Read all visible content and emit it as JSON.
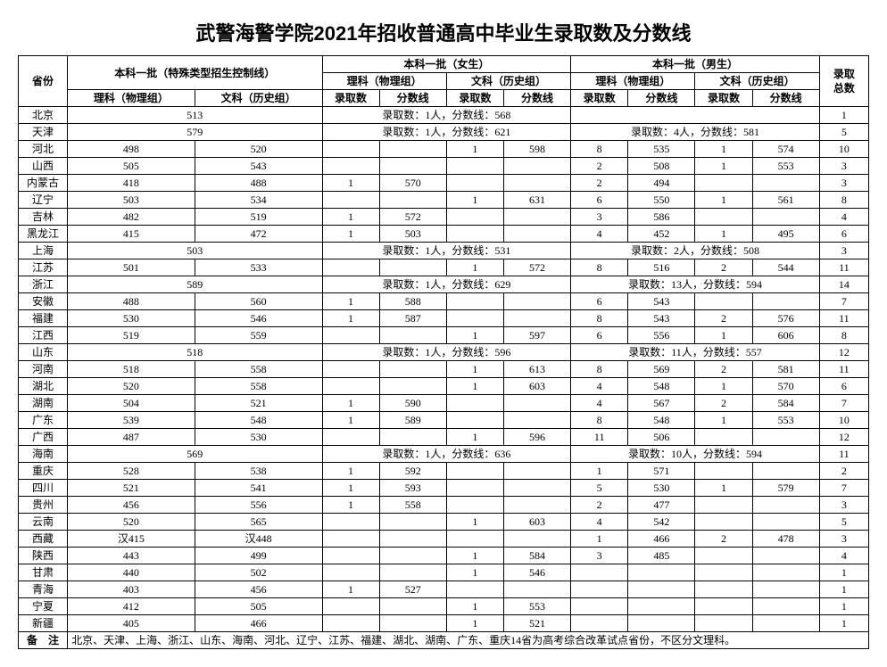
{
  "title": "武警海警学院2021年招收普通高中毕业生录取数及分数线",
  "header": {
    "province": "省份",
    "special": "本科一批（特殊类型招生控制线）",
    "female": "本科一批（女生）",
    "male": "本科一批（男生）",
    "total": "录取\n总数",
    "sci": "理科（物理组）",
    "lib": "文科（历史组）",
    "count": "录取数",
    "score": "分数线"
  },
  "rows": [
    {
      "prov": "北京",
      "specialMerge": "513",
      "femaleMerge": "录取数：1人，分数线：568",
      "maleMerge": "",
      "total": "1"
    },
    {
      "prov": "天津",
      "specialMerge": "579",
      "femaleMerge": "录取数：1人，分数线：621",
      "maleMerge": "录取数：4人，分数线：581",
      "total": "5"
    },
    {
      "prov": "河北",
      "sSci": "498",
      "sLib": "520",
      "fSciC": "",
      "fSciS": "",
      "fLibC": "1",
      "fLibS": "598",
      "mSciC": "8",
      "mSciS": "535",
      "mLibC": "1",
      "mLibS": "574",
      "total": "10"
    },
    {
      "prov": "山西",
      "sSci": "505",
      "sLib": "543",
      "fSciC": "",
      "fSciS": "",
      "fLibC": "",
      "fLibS": "",
      "mSciC": "2",
      "mSciS": "508",
      "mLibC": "1",
      "mLibS": "553",
      "total": "3"
    },
    {
      "prov": "内蒙古",
      "sSci": "418",
      "sLib": "488",
      "fSciC": "1",
      "fSciS": "570",
      "fLibC": "",
      "fLibS": "",
      "mSciC": "2",
      "mSciS": "494",
      "mLibC": "",
      "mLibS": "",
      "total": "3"
    },
    {
      "prov": "辽宁",
      "sSci": "503",
      "sLib": "534",
      "fSciC": "",
      "fSciS": "",
      "fLibC": "1",
      "fLibS": "631",
      "mSciC": "6",
      "mSciS": "550",
      "mLibC": "1",
      "mLibS": "561",
      "total": "8"
    },
    {
      "prov": "吉林",
      "sSci": "482",
      "sLib": "519",
      "fSciC": "1",
      "fSciS": "572",
      "fLibC": "",
      "fLibS": "",
      "mSciC": "3",
      "mSciS": "586",
      "mLibC": "",
      "mLibS": "",
      "total": "4"
    },
    {
      "prov": "黑龙江",
      "sSci": "415",
      "sLib": "472",
      "fSciC": "1",
      "fSciS": "503",
      "fLibC": "",
      "fLibS": "",
      "mSciC": "4",
      "mSciS": "452",
      "mLibC": "1",
      "mLibS": "495",
      "total": "6"
    },
    {
      "prov": "上海",
      "specialMerge": "503",
      "femaleMerge": "录取数：1人，分数线：531",
      "maleMerge": "录取数：2人，分数线：508",
      "total": "3"
    },
    {
      "prov": "江苏",
      "sSci": "501",
      "sLib": "533",
      "fSciC": "",
      "fSciS": "",
      "fLibC": "1",
      "fLibS": "572",
      "mSciC": "8",
      "mSciS": "516",
      "mLibC": "2",
      "mLibS": "544",
      "total": "11"
    },
    {
      "prov": "浙江",
      "specialMerge": "589",
      "femaleMerge": "录取数：1人，分数线：629",
      "maleMerge": "录取数：13人，分数线：594",
      "total": "14"
    },
    {
      "prov": "安徽",
      "sSci": "488",
      "sLib": "560",
      "fSciC": "1",
      "fSciS": "588",
      "fLibC": "",
      "fLibS": "",
      "mSciC": "6",
      "mSciS": "543",
      "mLibC": "",
      "mLibS": "",
      "total": "7"
    },
    {
      "prov": "福建",
      "sSci": "530",
      "sLib": "546",
      "fSciC": "1",
      "fSciS": "587",
      "fLibC": "",
      "fLibS": "",
      "mSciC": "8",
      "mSciS": "543",
      "mLibC": "2",
      "mLibS": "576",
      "total": "11"
    },
    {
      "prov": "江西",
      "sSci": "519",
      "sLib": "559",
      "fSciC": "",
      "fSciS": "",
      "fLibC": "1",
      "fLibS": "597",
      "mSciC": "6",
      "mSciS": "556",
      "mLibC": "1",
      "mLibS": "606",
      "total": "8"
    },
    {
      "prov": "山东",
      "specialMerge": "518",
      "femaleMerge": "录取数：1人，分数线：596",
      "maleMerge": "录取数：11人，分数线：557",
      "total": "12"
    },
    {
      "prov": "河南",
      "sSci": "518",
      "sLib": "558",
      "fSciC": "",
      "fSciS": "",
      "fLibC": "1",
      "fLibS": "613",
      "mSciC": "8",
      "mSciS": "569",
      "mLibC": "2",
      "mLibS": "581",
      "total": "11"
    },
    {
      "prov": "湖北",
      "sSci": "520",
      "sLib": "558",
      "fSciC": "",
      "fSciS": "",
      "fLibC": "1",
      "fLibS": "603",
      "mSciC": "4",
      "mSciS": "548",
      "mLibC": "1",
      "mLibS": "570",
      "total": "6"
    },
    {
      "prov": "湖南",
      "sSci": "504",
      "sLib": "521",
      "fSciC": "1",
      "fSciS": "590",
      "fLibC": "",
      "fLibS": "",
      "mSciC": "4",
      "mSciS": "567",
      "mLibC": "2",
      "mLibS": "584",
      "total": "7"
    },
    {
      "prov": "广东",
      "sSci": "539",
      "sLib": "548",
      "fSciC": "1",
      "fSciS": "589",
      "fLibC": "",
      "fLibS": "",
      "mSciC": "8",
      "mSciS": "548",
      "mLibC": "1",
      "mLibS": "553",
      "total": "10"
    },
    {
      "prov": "广西",
      "sSci": "487",
      "sLib": "530",
      "fSciC": "",
      "fSciS": "",
      "fLibC": "1",
      "fLibS": "596",
      "mSciC": "11",
      "mSciS": "506",
      "mLibC": "",
      "mLibS": "",
      "total": "12"
    },
    {
      "prov": "海南",
      "specialMerge": "569",
      "femaleMerge": "录取数：1人，分数线：636",
      "maleMerge": "录取数：10人，分数线：594",
      "total": "11"
    },
    {
      "prov": "重庆",
      "sSci": "528",
      "sLib": "538",
      "fSciC": "1",
      "fSciS": "592",
      "fLibC": "",
      "fLibS": "",
      "mSciC": "1",
      "mSciS": "571",
      "mLibC": "",
      "mLibS": "",
      "total": "2"
    },
    {
      "prov": "四川",
      "sSci": "521",
      "sLib": "541",
      "fSciC": "1",
      "fSciS": "593",
      "fLibC": "",
      "fLibS": "",
      "mSciC": "5",
      "mSciS": "530",
      "mLibC": "1",
      "mLibS": "579",
      "total": "7"
    },
    {
      "prov": "贵州",
      "sSci": "456",
      "sLib": "556",
      "fSciC": "1",
      "fSciS": "558",
      "fLibC": "",
      "fLibS": "",
      "mSciC": "2",
      "mSciS": "477",
      "mLibC": "",
      "mLibS": "",
      "total": "3"
    },
    {
      "prov": "云南",
      "sSci": "520",
      "sLib": "565",
      "fSciC": "",
      "fSciS": "",
      "fLibC": "1",
      "fLibS": "603",
      "mSciC": "4",
      "mSciS": "542",
      "mLibC": "",
      "mLibS": "",
      "total": "5"
    },
    {
      "prov": "西藏",
      "sSci": "汉415",
      "sLib": "汉448",
      "fSciC": "",
      "fSciS": "",
      "fLibC": "",
      "fLibS": "",
      "mSciC": "1",
      "mSciS": "466",
      "mLibC": "2",
      "mLibS": "478",
      "total": "3"
    },
    {
      "prov": "陕西",
      "sSci": "443",
      "sLib": "499",
      "fSciC": "",
      "fSciS": "",
      "fLibC": "1",
      "fLibS": "584",
      "mSciC": "3",
      "mSciS": "485",
      "mLibC": "",
      "mLibS": "",
      "total": "4"
    },
    {
      "prov": "甘肃",
      "sSci": "440",
      "sLib": "502",
      "fSciC": "",
      "fSciS": "",
      "fLibC": "1",
      "fLibS": "546",
      "mSciC": "",
      "mSciS": "",
      "mLibC": "",
      "mLibS": "",
      "total": "1"
    },
    {
      "prov": "青海",
      "sSci": "403",
      "sLib": "456",
      "fSciC": "1",
      "fSciS": "527",
      "fLibC": "",
      "fLibS": "",
      "mSciC": "",
      "mSciS": "",
      "mLibC": "",
      "mLibS": "",
      "total": "1"
    },
    {
      "prov": "宁夏",
      "sSci": "412",
      "sLib": "505",
      "fSciC": "",
      "fSciS": "",
      "fLibC": "1",
      "fLibS": "553",
      "mSciC": "",
      "mSciS": "",
      "mLibC": "",
      "mLibS": "",
      "total": "1"
    },
    {
      "prov": "新疆",
      "sSci": "405",
      "sLib": "466",
      "fSciC": "",
      "fSciS": "",
      "fLibC": "1",
      "fLibS": "521",
      "mSciC": "",
      "mSciS": "",
      "mLibC": "",
      "mLibS": "",
      "total": "1"
    }
  ],
  "note": {
    "label": "备　注",
    "text": "北京、天津、上海、浙江、山东、海南、河北、辽宁、江苏、福建、湖北、湖南、广东、重庆14省为高考综合改革试点省份，不区分文理科。"
  }
}
